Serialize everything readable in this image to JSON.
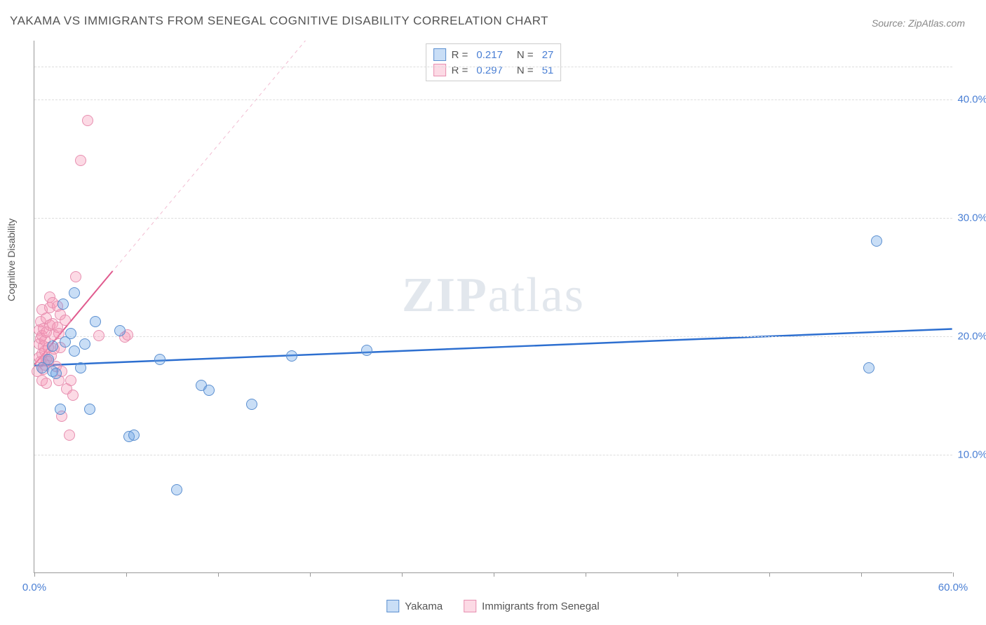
{
  "title": "YAKAMA VS IMMIGRANTS FROM SENEGAL COGNITIVE DISABILITY CORRELATION CHART",
  "source": "Source: ZipAtlas.com",
  "y_axis_label": "Cognitive Disability",
  "watermark": {
    "part1": "ZIP",
    "part2": "atlas"
  },
  "chart": {
    "type": "scatter",
    "xlim": [
      0,
      60
    ],
    "ylim": [
      0,
      45
    ],
    "x_ticks": [
      0,
      6,
      12,
      18,
      24,
      30,
      36,
      42,
      48,
      54,
      60
    ],
    "x_tick_labels": {
      "0": "0.0%",
      "60": "60.0%"
    },
    "y_gridlines": [
      10,
      20,
      30,
      40,
      42.8
    ],
    "y_tick_labels": {
      "10": "10.0%",
      "20": "20.0%",
      "30": "30.0%",
      "40": "40.0%"
    },
    "background_color": "#ffffff",
    "grid_color": "#dddddd",
    "axis_color": "#999999",
    "point_radius": 8,
    "series": {
      "blue": {
        "label": "Yakama",
        "fill": "rgba(100,160,230,0.35)",
        "stroke": "#5b8fd0",
        "r_value": "0.217",
        "n_value": "27",
        "trend": {
          "x1": 0,
          "y1": 17.5,
          "x2": 60,
          "y2": 20.6,
          "width": 2.5,
          "color": "#2d6fd0",
          "dash_extend": false
        },
        "points": [
          [
            0.5,
            17.3
          ],
          [
            0.9,
            18.0
          ],
          [
            1.2,
            17.0
          ],
          [
            1.2,
            19.1
          ],
          [
            1.4,
            16.8
          ],
          [
            1.7,
            13.8
          ],
          [
            1.9,
            22.7
          ],
          [
            2.0,
            19.5
          ],
          [
            2.4,
            20.2
          ],
          [
            2.6,
            23.6
          ],
          [
            2.6,
            18.7
          ],
          [
            3.0,
            17.3
          ],
          [
            3.3,
            19.3
          ],
          [
            3.6,
            13.8
          ],
          [
            4.0,
            21.2
          ],
          [
            5.6,
            20.4
          ],
          [
            6.2,
            11.5
          ],
          [
            6.5,
            11.6
          ],
          [
            8.2,
            18.0
          ],
          [
            9.3,
            7.0
          ],
          [
            10.9,
            15.8
          ],
          [
            11.4,
            15.4
          ],
          [
            14.2,
            14.2
          ],
          [
            16.8,
            18.3
          ],
          [
            21.7,
            18.8
          ],
          [
            54.5,
            17.3
          ],
          [
            55.0,
            28.0
          ]
        ]
      },
      "pink": {
        "label": "Immigrants from Senegal",
        "fill": "rgba(245,150,180,0.35)",
        "stroke": "#e78fb0",
        "r_value": "0.297",
        "n_value": "51",
        "trend": {
          "x1": 0,
          "y1": 17.6,
          "x2": 5.1,
          "y2": 25.5,
          "width": 2,
          "color": "#e05a8e",
          "dash_extend": true,
          "dash_x2": 19,
          "dash_y2": 47
        },
        "points": [
          [
            0.2,
            17.0
          ],
          [
            0.3,
            18.2
          ],
          [
            0.3,
            19.3
          ],
          [
            0.3,
            20.5
          ],
          [
            0.4,
            17.8
          ],
          [
            0.4,
            19.8
          ],
          [
            0.4,
            21.2
          ],
          [
            0.5,
            16.2
          ],
          [
            0.5,
            18.5
          ],
          [
            0.5,
            20.0
          ],
          [
            0.5,
            22.2
          ],
          [
            0.6,
            17.2
          ],
          [
            0.6,
            19.1
          ],
          [
            0.6,
            20.6
          ],
          [
            0.7,
            17.5
          ],
          [
            0.7,
            18.7
          ],
          [
            0.7,
            19.6
          ],
          [
            0.8,
            16.0
          ],
          [
            0.8,
            18.0
          ],
          [
            0.8,
            20.3
          ],
          [
            0.8,
            21.5
          ],
          [
            0.9,
            17.8
          ],
          [
            0.9,
            19.0
          ],
          [
            1.0,
            20.9
          ],
          [
            1.0,
            22.4
          ],
          [
            1.0,
            23.3
          ],
          [
            1.1,
            18.3
          ],
          [
            1.2,
            21.0
          ],
          [
            1.2,
            22.8
          ],
          [
            1.3,
            18.9
          ],
          [
            1.3,
            20.1
          ],
          [
            1.4,
            17.4
          ],
          [
            1.5,
            20.7
          ],
          [
            1.5,
            22.5
          ],
          [
            1.6,
            16.2
          ],
          [
            1.6,
            20.2
          ],
          [
            1.7,
            19.0
          ],
          [
            1.7,
            21.8
          ],
          [
            1.8,
            17.0
          ],
          [
            1.8,
            13.2
          ],
          [
            2.0,
            21.3
          ],
          [
            2.1,
            15.5
          ],
          [
            2.3,
            11.6
          ],
          [
            2.4,
            16.2
          ],
          [
            2.5,
            15.0
          ],
          [
            2.7,
            25.0
          ],
          [
            3.0,
            34.8
          ],
          [
            3.5,
            38.2
          ],
          [
            4.2,
            20.0
          ],
          [
            5.9,
            19.9
          ],
          [
            6.1,
            20.1
          ]
        ]
      }
    }
  },
  "legend_top": {
    "r_label": "R  =",
    "n_label": "N  ="
  }
}
